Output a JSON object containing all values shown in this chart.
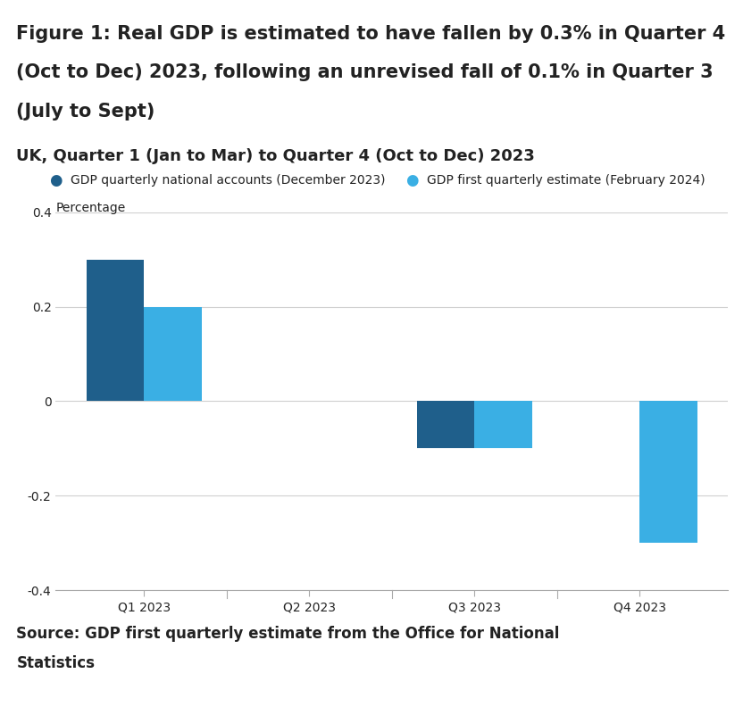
{
  "title_lines": [
    "Figure 1: Real GDP is estimated to have fallen by 0.3% in Quarter 4",
    "(Oct to Dec) 2023, following an unrevised fall of 0.1% in Quarter 3",
    "(July to Sept)"
  ],
  "subtitle": "UK, Quarter 1 (Jan to Mar) to Quarter 4 (Oct to Dec) 2023",
  "ylabel": "Percentage",
  "source_line1": "Source: GDP first quarterly estimate from the Office for National",
  "source_line2": "Statistics",
  "categories": [
    "Q1 2023",
    "Q2 2023",
    "Q3 2023",
    "Q4 2023"
  ],
  "series1_label": "GDP quarterly national accounts (December 2023)",
  "series2_label": "GDP first quarterly estimate (February 2024)",
  "series1_values": [
    0.3,
    0.0,
    -0.1,
    0.0
  ],
  "series2_values": [
    0.2,
    0.0,
    -0.1,
    -0.3
  ],
  "series1_color": "#1f5f8b",
  "series2_color": "#3aafe4",
  "ylim": [
    -0.4,
    0.4
  ],
  "yticks": [
    -0.4,
    -0.2,
    0,
    0.2,
    0.4
  ],
  "ytick_labels": [
    "-0.4",
    "-0.2",
    "0",
    "0.2",
    "0.4"
  ],
  "background_color": "#ffffff",
  "grid_color": "#d0d0d0",
  "text_color": "#222222",
  "bar_width": 0.35,
  "title_fontsize": 15,
  "subtitle_fontsize": 13,
  "legend_fontsize": 10,
  "axis_fontsize": 10,
  "source_fontsize": 12
}
